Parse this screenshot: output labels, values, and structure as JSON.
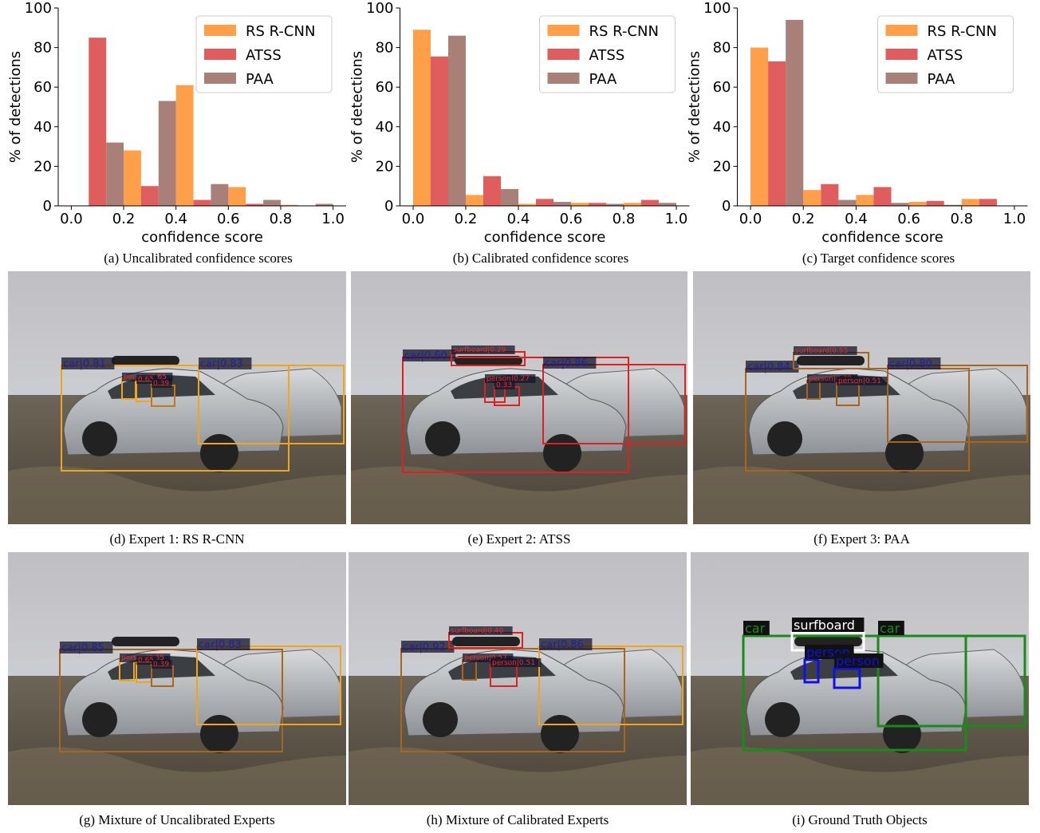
{
  "chart_data": [
    {
      "type": "histogram",
      "caption": "(a) Uncalibrated confidence scores",
      "xlabel": "confidence score",
      "ylabel": "% of detections",
      "bins": [
        0.0,
        0.2,
        0.4,
        0.6,
        0.8,
        1.0
      ],
      "series": [
        {
          "name": "RS R-CNN",
          "color": "#ff9f4a",
          "values": [
            0,
            28,
            61,
            9.5,
            0.5
          ]
        },
        {
          "name": "ATSS",
          "color": "#e05d5e",
          "values": [
            85,
            10,
            3,
            1,
            0
          ]
        },
        {
          "name": "PAA",
          "color": "#a98078",
          "values": [
            32,
            53,
            11,
            3,
            1
          ]
        }
      ],
      "xlim": [
        -0.05,
        1.05
      ],
      "ylim": [
        0,
        100
      ],
      "xticks": [
        {
          "value": 0,
          "label": "0.0"
        },
        0.2,
        0.4,
        0.6,
        0.8,
        {
          "value": 1,
          "label": "1.0"
        }
      ],
      "yticks": [
        0,
        20,
        40,
        60,
        80,
        100
      ],
      "legend": "upper right"
    },
    {
      "type": "histogram",
      "caption": "(b) Calibrated confidence scores",
      "xlabel": "confidence score",
      "ylabel": "% of detections",
      "bins": [
        0.0,
        0.2,
        0.4,
        0.6,
        0.8,
        1.0
      ],
      "series": [
        {
          "name": "RS R-CNN",
          "color": "#ff9f4a",
          "values": [
            89,
            5.5,
            1,
            1.5,
            1.5
          ]
        },
        {
          "name": "ATSS",
          "color": "#e05d5e",
          "values": [
            75.5,
            15,
            3.5,
            1.5,
            3
          ]
        },
        {
          "name": "PAA",
          "color": "#a98078",
          "values": [
            86,
            8.5,
            2,
            1,
            1.5
          ]
        }
      ],
      "xlim": [
        -0.05,
        1.05
      ],
      "ylim": [
        0,
        100
      ],
      "xticks": [
        {
          "value": 0,
          "label": "0.0"
        },
        0.2,
        0.4,
        0.6,
        0.8,
        {
          "value": 1,
          "label": "1.0"
        }
      ],
      "yticks": [
        0,
        20,
        40,
        60,
        80,
        100
      ],
      "legend": "upper right"
    },
    {
      "type": "histogram",
      "caption": "(c) Target confidence scores",
      "xlabel": "confidence score",
      "ylabel": "% of detections",
      "bins": [
        0.0,
        0.2,
        0.4,
        0.6,
        0.8,
        1.0
      ],
      "series": [
        {
          "name": "RS R-CNN",
          "color": "#ff9f4a",
          "values": [
            80,
            8,
            5.5,
            2,
            3.5
          ]
        },
        {
          "name": "ATSS",
          "color": "#e05d5e",
          "values": [
            73,
            11,
            9.5,
            2.5,
            3.5
          ]
        },
        {
          "name": "PAA",
          "color": "#a98078",
          "values": [
            94,
            3,
            1.5,
            0.5,
            0
          ]
        }
      ],
      "xlim": [
        -0.05,
        1.05
      ],
      "ylim": [
        0,
        100
      ],
      "xticks": [
        {
          "value": 0,
          "label": "0.0"
        },
        0.2,
        0.4,
        0.6,
        0.8,
        {
          "value": 1,
          "label": "1.0"
        }
      ],
      "yticks": [
        0,
        20,
        40,
        60,
        80,
        100
      ],
      "legend": "upper right"
    }
  ],
  "panels": [
    {
      "caption": "(d) Expert 1: RS R-CNN",
      "detections": [
        {
          "label": "car|0.81",
          "color": "#f0a51c"
        },
        {
          "label": "car|0.83",
          "color": "#f0a51c"
        },
        {
          "label": "person|0.65",
          "color": "#f0a51c"
        },
        {
          "label": "0.65",
          "color": "#f0a51c"
        },
        {
          "label": "0.39",
          "color": "#c07a1a"
        }
      ]
    },
    {
      "caption": "(e) Expert 2: ATSS",
      "detections": [
        {
          "label": "car|0.60",
          "color": "#e02020"
        },
        {
          "label": "car|0.86",
          "color": "#e02020"
        },
        {
          "label": "surfboard|0.29",
          "color": "#e02020"
        },
        {
          "label": "person|0.27",
          "color": "#e02020"
        },
        {
          "label": "0.33",
          "color": "#e02020"
        }
      ]
    },
    {
      "caption": "(f) Expert 3: PAA",
      "detections": [
        {
          "label": "car|0.84",
          "color": "#a8651f"
        },
        {
          "label": "car|0.80",
          "color": "#a8651f"
        },
        {
          "label": "surfboard|0.55",
          "color": "#a8651f"
        },
        {
          "label": "person|0.49",
          "color": "#a8651f"
        },
        {
          "label": "person|0.51",
          "color": "#a8651f"
        }
      ]
    },
    {
      "caption": "(g) Mixture of Uncalibrated Experts",
      "detections": [
        {
          "label": "car|0.85",
          "color": "#a8651f"
        },
        {
          "label": "car|0.83",
          "color": "#f0a51c"
        },
        {
          "label": "person|0.65",
          "color": "#f0a51c"
        },
        {
          "label": "0.65",
          "color": "#f0a51c"
        },
        {
          "label": "0.39",
          "color": "#a8651f"
        }
      ]
    },
    {
      "caption": "(h) Mixture of Calibrated Experts",
      "detections": [
        {
          "label": "car|0.92",
          "color": "#a8651f"
        },
        {
          "label": "car|0.86",
          "color": "#f0a51c"
        },
        {
          "label": "surfboard|0.40",
          "color": "#e02020"
        },
        {
          "label": "person|0.57",
          "color": "#a8651f"
        },
        {
          "label": "person|0.51",
          "color": "#e02020"
        }
      ]
    },
    {
      "caption": "(i) Ground Truth Objects",
      "detections": [
        {
          "label": "car",
          "color": "#1a8a1a"
        },
        {
          "label": "car",
          "color": "#1a8a1a"
        },
        {
          "label": "surfboard",
          "color": "#ffffff"
        },
        {
          "label": "person",
          "color": "#1010e0"
        },
        {
          "label": "person",
          "color": "#1010e0"
        }
      ]
    }
  ]
}
